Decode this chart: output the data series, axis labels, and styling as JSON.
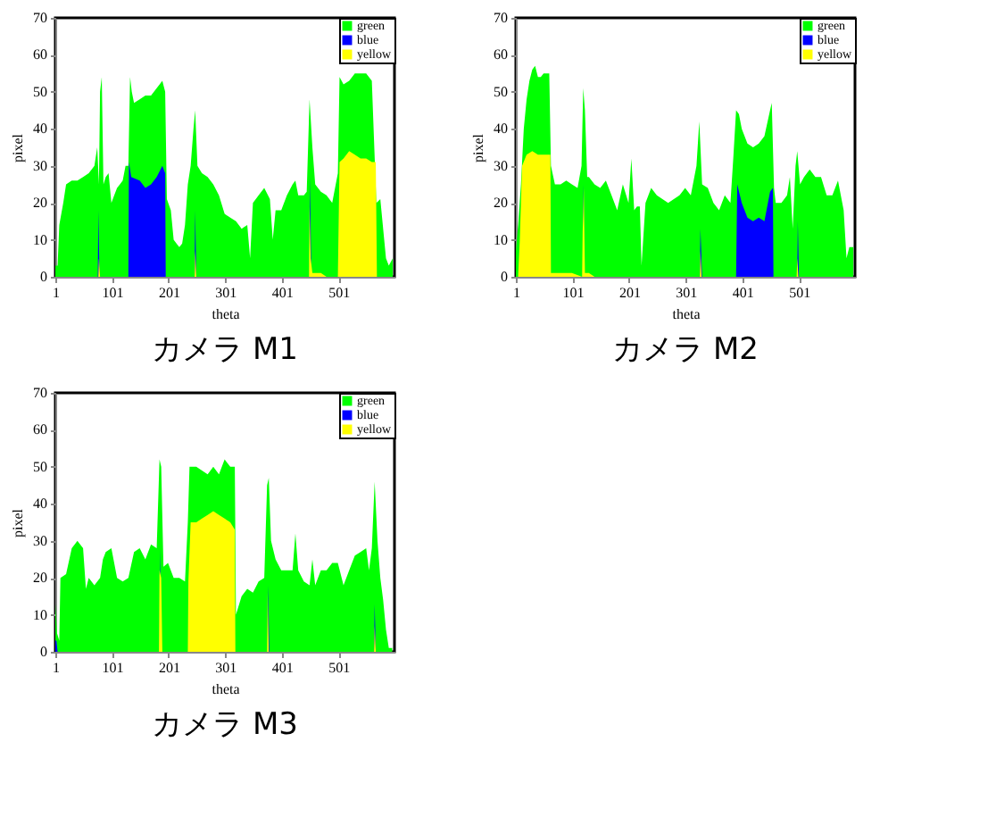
{
  "chart_data": [
    {
      "type": "area",
      "title": "カメラ M1",
      "xlabel": "theta",
      "ylabel": "pixel",
      "xlim": [
        1,
        600
      ],
      "xticks": [
        1,
        101,
        201,
        301,
        401,
        501
      ],
      "ylim": [
        0,
        70
      ],
      "yticks": [
        0,
        10,
        20,
        30,
        40,
        50,
        60,
        70
      ],
      "legend": "top right",
      "grid": false,
      "series": [
        {
          "name": "green",
          "color": "#00ff00",
          "x": [
            1,
            5,
            8,
            15,
            20,
            30,
            40,
            50,
            60,
            70,
            75,
            78,
            80,
            83,
            86,
            90,
            95,
            100,
            105,
            110,
            115,
            120,
            125,
            130,
            133,
            136,
            140,
            150,
            160,
            170,
            180,
            190,
            195,
            198,
            205,
            210,
            215,
            220,
            225,
            230,
            235,
            240,
            245,
            248,
            252,
            260,
            270,
            280,
            290,
            300,
            310,
            320,
            330,
            340,
            345,
            350,
            360,
            370,
            380,
            385,
            390,
            400,
            410,
            420,
            425,
            430,
            440,
            445,
            450,
            455,
            460,
            470,
            480,
            490,
            500,
            503,
            510,
            520,
            530,
            540,
            550,
            560,
            568,
            575,
            580,
            585,
            590,
            597
          ],
          "values": [
            3,
            3,
            14,
            20,
            25,
            26,
            26,
            27,
            28,
            30,
            35,
            25,
            50,
            54,
            25,
            27,
            28,
            20,
            22,
            24,
            25,
            26,
            30,
            30,
            54,
            50,
            47,
            48,
            49,
            49,
            51,
            53,
            50,
            21,
            18,
            10,
            9,
            8,
            9,
            14,
            25,
            30,
            40,
            45,
            30,
            28,
            27,
            25,
            22,
            17,
            16,
            15,
            13,
            14,
            5,
            20,
            22,
            24,
            21,
            10,
            18,
            18,
            22,
            25,
            26,
            22,
            22,
            23,
            48,
            35,
            25,
            23,
            22,
            20,
            28,
            54,
            52,
            53,
            55,
            55,
            55,
            53,
            20,
            21,
            13,
            5,
            3,
            5
          ]
        },
        {
          "name": "blue",
          "color": "#0000ff",
          "x": [
            1,
            76,
            77,
            79,
            130,
            131,
            135,
            150,
            160,
            170,
            180,
            190,
            195,
            196,
            247,
            248,
            250,
            450,
            451,
            453,
            597
          ],
          "values": [
            0,
            0,
            18,
            0,
            0,
            31,
            27,
            26,
            24,
            25,
            27,
            30,
            28,
            0,
            0,
            18,
            0,
            0,
            27,
            0,
            0
          ]
        },
        {
          "name": "yellow",
          "color": "#ffff00",
          "x": [
            1,
            77,
            78,
            80,
            247,
            248,
            250,
            449,
            450,
            452,
            455,
            470,
            480,
            500,
            503,
            510,
            520,
            530,
            540,
            550,
            560,
            567,
            569,
            597
          ],
          "values": [
            0,
            0,
            5,
            0,
            0,
            7,
            0,
            0,
            19,
            5,
            1,
            1,
            0,
            0,
            31,
            32,
            34,
            33,
            32,
            32,
            31,
            31,
            0,
            0
          ]
        }
      ]
    },
    {
      "type": "area",
      "title": "カメラ M2",
      "xlabel": "theta",
      "ylabel": "pixel",
      "xlim": [
        1,
        600
      ],
      "xticks": [
        1,
        101,
        201,
        301,
        401,
        501
      ],
      "ylim": [
        0,
        70
      ],
      "yticks": [
        0,
        10,
        20,
        30,
        40,
        50,
        60,
        70
      ],
      "legend": "top right",
      "grid": false,
      "series": [
        {
          "name": "green",
          "color": "#00ff00",
          "x": [
            1,
            5,
            10,
            15,
            20,
            25,
            30,
            35,
            40,
            45,
            50,
            55,
            60,
            63,
            70,
            80,
            90,
            100,
            110,
            117,
            120,
            123,
            127,
            130,
            140,
            150,
            160,
            170,
            180,
            190,
            200,
            205,
            210,
            215,
            220,
            223,
            230,
            240,
            250,
            260,
            270,
            280,
            290,
            300,
            310,
            320,
            325,
            330,
            340,
            350,
            360,
            370,
            380,
            385,
            390,
            395,
            400,
            410,
            420,
            430,
            440,
            450,
            453,
            457,
            460,
            470,
            480,
            485,
            490,
            495,
            498,
            503,
            510,
            520,
            530,
            540,
            550,
            560,
            570,
            580,
            585,
            590,
            597
          ],
          "values": [
            7,
            14,
            25,
            40,
            48,
            53,
            56,
            57,
            54,
            54,
            55,
            55,
            55,
            30,
            25,
            25,
            26,
            25,
            24,
            30,
            51,
            45,
            27,
            27,
            25,
            24,
            26,
            22,
            18,
            25,
            20,
            32,
            18,
            19,
            19,
            3,
            20,
            24,
            22,
            21,
            20,
            21,
            22,
            24,
            22,
            30,
            42,
            25,
            24,
            20,
            18,
            22,
            20,
            32,
            45,
            44,
            40,
            36,
            35,
            36,
            38,
            45,
            47,
            24,
            20,
            20,
            22,
            27,
            13,
            30,
            34,
            25,
            27,
            29,
            27,
            27,
            22,
            22,
            26,
            18,
            5,
            8,
            8
          ]
        },
        {
          "name": "blue",
          "color": "#0000ff",
          "x": [
            1,
            119,
            120,
            122,
            326,
            327,
            330,
            390,
            392,
            400,
            410,
            420,
            430,
            440,
            450,
            455,
            456,
            498,
            499,
            501,
            597
          ],
          "values": [
            0,
            0,
            25,
            0,
            0,
            13,
            0,
            0,
            25,
            20,
            16,
            15,
            16,
            15,
            23,
            24,
            0,
            0,
            15,
            0,
            0
          ]
        },
        {
          "name": "yellow",
          "color": "#ffff00",
          "x": [
            1,
            5,
            8,
            12,
            20,
            30,
            40,
            50,
            60,
            62,
            63,
            80,
            100,
            118,
            119,
            121,
            123,
            130,
            140,
            326,
            327,
            329,
            497,
            498,
            500,
            597
          ],
          "values": [
            0,
            0,
            10,
            30,
            33,
            34,
            33,
            33,
            33,
            33,
            1,
            1,
            1,
            0,
            12,
            24,
            1,
            1,
            0,
            0,
            7,
            0,
            0,
            5,
            0,
            0
          ]
        }
      ]
    },
    {
      "type": "area",
      "title": "カメラ M3",
      "xlabel": "theta",
      "ylabel": "pixel",
      "xlim": [
        1,
        600
      ],
      "xticks": [
        1,
        101,
        201,
        301,
        401,
        501
      ],
      "ylim": [
        0,
        70
      ],
      "yticks": [
        0,
        10,
        20,
        30,
        40,
        50,
        60,
        70
      ],
      "legend": "top right",
      "grid": false,
      "series": [
        {
          "name": "green",
          "color": "#00ff00",
          "x": [
            1,
            4,
            8,
            10,
            20,
            30,
            40,
            50,
            55,
            60,
            70,
            80,
            85,
            90,
            100,
            110,
            120,
            130,
            140,
            150,
            160,
            170,
            180,
            185,
            188,
            192,
            200,
            210,
            220,
            230,
            235,
            238,
            250,
            260,
            270,
            280,
            290,
            300,
            310,
            318,
            320,
            330,
            340,
            350,
            360,
            370,
            375,
            378,
            382,
            390,
            400,
            410,
            420,
            425,
            430,
            440,
            450,
            455,
            460,
            470,
            480,
            490,
            500,
            510,
            520,
            530,
            540,
            550,
            555,
            560,
            565,
            570,
            575,
            580,
            585,
            590,
            596
          ],
          "values": [
            13,
            5,
            3,
            20,
            21,
            28,
            30,
            28,
            17,
            20,
            18,
            20,
            25,
            27,
            28,
            20,
            19,
            20,
            27,
            28,
            25,
            29,
            28,
            52,
            50,
            23,
            24,
            20,
            20,
            19,
            35,
            50,
            50,
            49,
            48,
            50,
            48,
            52,
            50,
            50,
            10,
            15,
            17,
            16,
            19,
            20,
            45,
            47,
            30,
            25,
            22,
            22,
            22,
            32,
            22,
            19,
            18,
            25,
            18,
            22,
            22,
            24,
            24,
            18,
            22,
            26,
            27,
            28,
            22,
            28,
            46,
            30,
            20,
            14,
            6,
            1,
            1
          ]
        },
        {
          "name": "blue",
          "color": "#0000ff",
          "x": [
            1,
            3,
            5,
            185,
            186,
            188,
            376,
            377,
            379,
            564,
            565,
            567,
            596
          ],
          "values": [
            3,
            3,
            0,
            0,
            28,
            0,
            0,
            18,
            0,
            0,
            13,
            0,
            0
          ]
        },
        {
          "name": "yellow",
          "color": "#ffff00",
          "x": [
            1,
            184,
            185,
            188,
            190,
            235,
            236,
            240,
            250,
            260,
            270,
            280,
            290,
            300,
            310,
            318,
            319,
            375,
            376,
            378,
            564,
            565,
            567,
            596
          ],
          "values": [
            0,
            0,
            22,
            20,
            0,
            0,
            19,
            35,
            35,
            36,
            37,
            38,
            37,
            36,
            35,
            33,
            0,
            0,
            16,
            0,
            0,
            7,
            0,
            0
          ]
        }
      ]
    }
  ]
}
